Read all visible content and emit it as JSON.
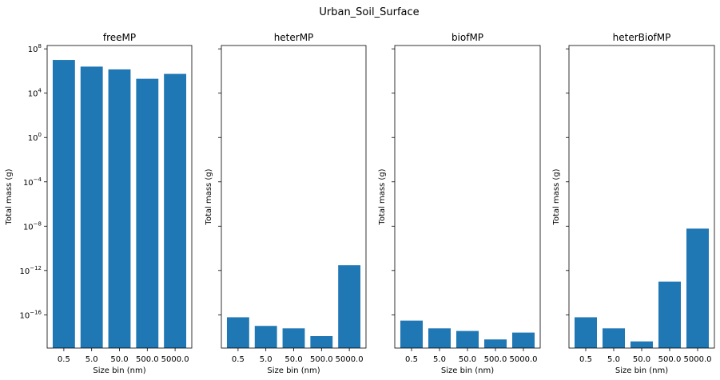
{
  "figure": {
    "title": "Urban_Soil_Surface",
    "bar_color": "#1f77b4"
  },
  "chart_data": [
    {
      "type": "bar",
      "title": "freeMP",
      "xlabel": "Size bin (nm)",
      "ylabel": "Total mass (g)",
      "categories": [
        "0.5",
        "5.0",
        "50.0",
        "500.0",
        "5000.0"
      ],
      "values": [
        10000000.0,
        2500000.0,
        1400000.0,
        200000.0,
        550000.0
      ],
      "yscale": "log",
      "ylim": [
        1e-19,
        200000000.0
      ],
      "yticks": [
        {
          "base": "10",
          "exp": "8",
          "v": 100000000.0
        },
        {
          "base": "10",
          "exp": "4",
          "v": 10000.0
        },
        {
          "base": "10",
          "exp": "0",
          "v": 1
        },
        {
          "base": "10",
          "exp": "−4",
          "v": 0.0001
        },
        {
          "base": "10",
          "exp": "−8",
          "v": 1e-08
        },
        {
          "base": "10",
          "exp": "−12",
          "v": 1e-12
        },
        {
          "base": "10",
          "exp": "−16",
          "v": 1e-16
        }
      ]
    },
    {
      "type": "bar",
      "title": "heterMP",
      "xlabel": "Size bin (nm)",
      "ylabel": "Total mass (g)",
      "categories": [
        "0.5",
        "5.0",
        "50.0",
        "500.0",
        "5000.0"
      ],
      "values": [
        6e-17,
        1e-17,
        6e-18,
        1.2e-18,
        3e-12
      ],
      "yscale": "log",
      "ylim": [
        1e-19,
        200000000.0
      ],
      "yticks": [
        {
          "v": 100000000.0
        },
        {
          "v": 10000.0
        },
        {
          "v": 1
        },
        {
          "v": 0.0001
        },
        {
          "v": 1e-08
        },
        {
          "v": 1e-12
        },
        {
          "v": 1e-16
        }
      ]
    },
    {
      "type": "bar",
      "title": "biofMP",
      "xlabel": "Size bin (nm)",
      "ylabel": "Total mass (g)",
      "categories": [
        "0.5",
        "5.0",
        "50.0",
        "500.0",
        "5000.0"
      ],
      "values": [
        3e-17,
        6e-18,
        3.5e-18,
        6e-19,
        2.5e-18
      ],
      "yscale": "log",
      "ylim": [
        1e-19,
        200000000.0
      ],
      "yticks": [
        {
          "v": 100000000.0
        },
        {
          "v": 10000.0
        },
        {
          "v": 1
        },
        {
          "v": 0.0001
        },
        {
          "v": 1e-08
        },
        {
          "v": 1e-12
        },
        {
          "v": 1e-16
        }
      ]
    },
    {
      "type": "bar",
      "title": "heterBiofMP",
      "xlabel": "Size bin (nm)",
      "ylabel": "Total mass (g)",
      "categories": [
        "0.5",
        "5.0",
        "50.0",
        "500.0",
        "5000.0"
      ],
      "values": [
        6e-17,
        6e-18,
        4e-19,
        1e-13,
        6e-09
      ],
      "yscale": "log",
      "ylim": [
        1e-19,
        200000000.0
      ],
      "yticks": [
        {
          "v": 100000000.0
        },
        {
          "v": 10000.0
        },
        {
          "v": 1
        },
        {
          "v": 0.0001
        },
        {
          "v": 1e-08
        },
        {
          "v": 1e-12
        },
        {
          "v": 1e-16
        }
      ]
    }
  ]
}
